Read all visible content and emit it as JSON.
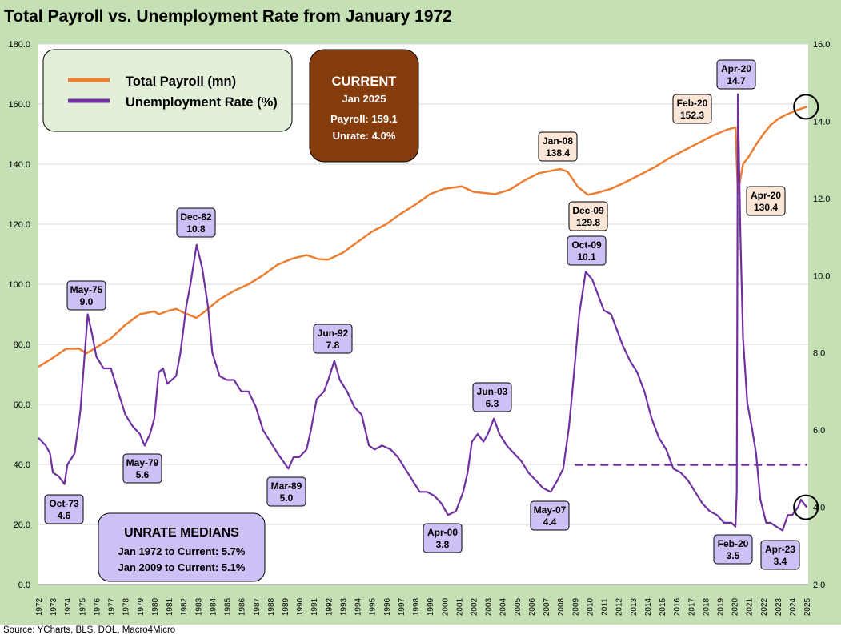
{
  "title": "Total Payroll vs. Unemployment Rate from January 1972",
  "source": "Source: YCharts, BLS, DOL, Macro4Micro",
  "colors": {
    "frame": "#c5e0b4",
    "payroll": "#ed7d31",
    "unrate": "#7030a0",
    "unrate_label_fill": "#ccc0f5",
    "payroll_label_fill": "#fbe5d6",
    "current_box": "#843c0c",
    "legend_fill": "#e2f0d9",
    "medians_fill": "#ccc0f5"
  },
  "legend": {
    "items": [
      {
        "label": "Total Payroll (mn)",
        "color": "#ed7d31"
      },
      {
        "label": "Unemployment Rate (%)",
        "color": "#7030a0"
      }
    ]
  },
  "current_box": {
    "heading": "CURRENT",
    "date": "Jan 2025",
    "payroll": "Payroll: 159.1",
    "unrate": "Unrate: 4.0%"
  },
  "medians_box": {
    "heading": "UNRATE MEDIANS",
    "line1": "Jan 1972 to Current: 5.7%",
    "line2": "Jan 2009 to Current: 5.1%"
  },
  "chart_data": {
    "type": "line",
    "x_axis": {
      "range": [
        1972,
        2025.1
      ],
      "tick_labels": [
        "1972",
        "1973",
        "1974",
        "1975",
        "1976",
        "1977",
        "1978",
        "1979",
        "1980",
        "1981",
        "1982",
        "1983",
        "1984",
        "1985",
        "1986",
        "1987",
        "1988",
        "1989",
        "1990",
        "1991",
        "1992",
        "1993",
        "1994",
        "1995",
        "1996",
        "1997",
        "1998",
        "1999",
        "2000",
        "2001",
        "2002",
        "2003",
        "2004",
        "2005",
        "2006",
        "2007",
        "2008",
        "2009",
        "2010",
        "2011",
        "2012",
        "2013",
        "2014",
        "2015",
        "2016",
        "2017",
        "2018",
        "2019",
        "2020",
        "2021",
        "2022",
        "2023",
        "2024",
        "2025"
      ]
    },
    "y_left": {
      "range": [
        0,
        180
      ],
      "ticks": [
        "0.0",
        "20.0",
        "40.0",
        "60.0",
        "80.0",
        "100.0",
        "120.0",
        "140.0",
        "160.0",
        "180.0"
      ]
    },
    "y_right": {
      "range": [
        2,
        16
      ],
      "ticks": [
        "2.0",
        "4.0",
        "6.0",
        "8.0",
        "10.0",
        "12.0",
        "14.0",
        "16.0"
      ]
    },
    "grid": "horizontal",
    "legend_position": "top-left",
    "series": [
      {
        "name": "Total Payroll (mn)",
        "axis": "left",
        "points": [
          [
            1972.0,
            72.5
          ],
          [
            1973.0,
            75.5
          ],
          [
            1973.9,
            78.5
          ],
          [
            1974.8,
            78.6
          ],
          [
            1975.3,
            77.0
          ],
          [
            1976.0,
            79.0
          ],
          [
            1977.0,
            82.0
          ],
          [
            1978.0,
            86.5
          ],
          [
            1979.0,
            90.0
          ],
          [
            1980.0,
            91.0
          ],
          [
            1980.3,
            90.0
          ],
          [
            1981.0,
            91.2
          ],
          [
            1981.5,
            91.8
          ],
          [
            1982.0,
            90.6
          ],
          [
            1982.9,
            88.8
          ],
          [
            1983.5,
            91.0
          ],
          [
            1984.5,
            95.0
          ],
          [
            1985.5,
            97.8
          ],
          [
            1986.5,
            100.0
          ],
          [
            1987.5,
            103.0
          ],
          [
            1988.5,
            106.5
          ],
          [
            1989.5,
            108.5
          ],
          [
            1990.5,
            109.7
          ],
          [
            1991.3,
            108.4
          ],
          [
            1992.0,
            108.2
          ],
          [
            1993.0,
            110.5
          ],
          [
            1994.0,
            114.0
          ],
          [
            1995.0,
            117.5
          ],
          [
            1996.0,
            120.0
          ],
          [
            1997.0,
            123.5
          ],
          [
            1998.0,
            126.5
          ],
          [
            1999.0,
            130.0
          ],
          [
            2000.0,
            131.8
          ],
          [
            2001.2,
            132.6
          ],
          [
            2002.0,
            130.8
          ],
          [
            2003.5,
            130.0
          ],
          [
            2004.5,
            131.5
          ],
          [
            2005.5,
            134.5
          ],
          [
            2006.5,
            137.0
          ],
          [
            2008.0,
            138.4
          ],
          [
            2008.5,
            137.5
          ],
          [
            2009.2,
            132.5
          ],
          [
            2009.9,
            129.8
          ],
          [
            2010.5,
            130.4
          ],
          [
            2011.5,
            131.8
          ],
          [
            2012.5,
            134.0
          ],
          [
            2013.5,
            136.5
          ],
          [
            2014.5,
            139.0
          ],
          [
            2015.5,
            142.0
          ],
          [
            2016.5,
            144.5
          ],
          [
            2017.5,
            147.0
          ],
          [
            2018.5,
            149.5
          ],
          [
            2019.5,
            151.5
          ],
          [
            2020.08,
            152.3
          ],
          [
            2020.25,
            130.4
          ],
          [
            2020.6,
            140.0
          ],
          [
            2021.0,
            142.5
          ],
          [
            2021.5,
            146.5
          ],
          [
            2022.0,
            150.0
          ],
          [
            2022.5,
            153.0
          ],
          [
            2023.0,
            155.0
          ],
          [
            2023.5,
            156.3
          ],
          [
            2024.0,
            157.3
          ],
          [
            2024.5,
            158.3
          ],
          [
            2025.0,
            159.1
          ]
        ]
      },
      {
        "name": "Unemployment Rate (%)",
        "axis": "right",
        "points": [
          [
            1972.0,
            5.8
          ],
          [
            1972.5,
            5.6
          ],
          [
            1972.8,
            5.4
          ],
          [
            1973.0,
            4.9
          ],
          [
            1973.4,
            4.8
          ],
          [
            1973.8,
            4.6
          ],
          [
            1974.0,
            5.1
          ],
          [
            1974.5,
            5.4
          ],
          [
            1974.9,
            6.5
          ],
          [
            1975.3,
            8.5
          ],
          [
            1975.4,
            9.0
          ],
          [
            1975.7,
            8.5
          ],
          [
            1976.0,
            7.9
          ],
          [
            1976.5,
            7.6
          ],
          [
            1977.0,
            7.6
          ],
          [
            1977.5,
            7.0
          ],
          [
            1978.0,
            6.4
          ],
          [
            1978.5,
            6.1
          ],
          [
            1979.0,
            5.9
          ],
          [
            1979.33,
            5.6
          ],
          [
            1979.7,
            5.9
          ],
          [
            1980.0,
            6.3
          ],
          [
            1980.3,
            7.5
          ],
          [
            1980.6,
            7.6
          ],
          [
            1980.9,
            7.2
          ],
          [
            1981.5,
            7.4
          ],
          [
            1981.8,
            8.0
          ],
          [
            1982.2,
            9.2
          ],
          [
            1982.5,
            9.8
          ],
          [
            1982.92,
            10.8
          ],
          [
            1983.3,
            10.2
          ],
          [
            1983.7,
            9.2
          ],
          [
            1984.0,
            8.0
          ],
          [
            1984.5,
            7.4
          ],
          [
            1985.0,
            7.3
          ],
          [
            1985.5,
            7.3
          ],
          [
            1986.0,
            7.0
          ],
          [
            1986.5,
            7.0
          ],
          [
            1987.0,
            6.6
          ],
          [
            1987.5,
            6.0
          ],
          [
            1988.0,
            5.7
          ],
          [
            1988.5,
            5.4
          ],
          [
            1989.25,
            5.0
          ],
          [
            1989.6,
            5.3
          ],
          [
            1990.0,
            5.3
          ],
          [
            1990.5,
            5.5
          ],
          [
            1990.8,
            6.0
          ],
          [
            1991.2,
            6.8
          ],
          [
            1991.7,
            7.0
          ],
          [
            1992.0,
            7.3
          ],
          [
            1992.42,
            7.8
          ],
          [
            1992.8,
            7.3
          ],
          [
            1993.3,
            7.0
          ],
          [
            1993.8,
            6.6
          ],
          [
            1994.3,
            6.4
          ],
          [
            1994.8,
            5.6
          ],
          [
            1995.2,
            5.5
          ],
          [
            1995.7,
            5.6
          ],
          [
            1996.3,
            5.5
          ],
          [
            1996.8,
            5.3
          ],
          [
            1997.3,
            5.0
          ],
          [
            1997.8,
            4.7
          ],
          [
            1998.3,
            4.4
          ],
          [
            1998.8,
            4.4
          ],
          [
            1999.3,
            4.3
          ],
          [
            1999.8,
            4.1
          ],
          [
            2000.25,
            3.8
          ],
          [
            2000.8,
            3.9
          ],
          [
            2001.3,
            4.4
          ],
          [
            2001.6,
            4.9
          ],
          [
            2001.9,
            5.7
          ],
          [
            2002.3,
            5.9
          ],
          [
            2002.7,
            5.7
          ],
          [
            2003.0,
            5.9
          ],
          [
            2003.42,
            6.3
          ],
          [
            2003.8,
            5.9
          ],
          [
            2004.3,
            5.6
          ],
          [
            2004.8,
            5.4
          ],
          [
            2005.3,
            5.2
          ],
          [
            2005.8,
            4.9
          ],
          [
            2006.3,
            4.7
          ],
          [
            2006.8,
            4.5
          ],
          [
            2007.33,
            4.4
          ],
          [
            2007.8,
            4.7
          ],
          [
            2008.2,
            5.0
          ],
          [
            2008.6,
            6.1
          ],
          [
            2008.9,
            7.3
          ],
          [
            2009.3,
            9.0
          ],
          [
            2009.75,
            10.1
          ],
          [
            2010.2,
            9.9
          ],
          [
            2010.6,
            9.5
          ],
          [
            2011.0,
            9.1
          ],
          [
            2011.5,
            9.0
          ],
          [
            2011.9,
            8.6
          ],
          [
            2012.3,
            8.2
          ],
          [
            2012.8,
            7.8
          ],
          [
            2013.3,
            7.5
          ],
          [
            2013.8,
            7.0
          ],
          [
            2014.3,
            6.3
          ],
          [
            2014.8,
            5.8
          ],
          [
            2015.3,
            5.5
          ],
          [
            2015.8,
            5.0
          ],
          [
            2016.3,
            4.9
          ],
          [
            2016.8,
            4.7
          ],
          [
            2017.3,
            4.4
          ],
          [
            2017.8,
            4.1
          ],
          [
            2018.3,
            3.9
          ],
          [
            2018.8,
            3.8
          ],
          [
            2019.3,
            3.6
          ],
          [
            2019.8,
            3.6
          ],
          [
            2020.08,
            3.5
          ],
          [
            2020.17,
            4.4
          ],
          [
            2020.25,
            14.7
          ],
          [
            2020.42,
            11.1
          ],
          [
            2020.6,
            8.4
          ],
          [
            2020.9,
            6.7
          ],
          [
            2021.2,
            6.1
          ],
          [
            2021.5,
            5.4
          ],
          [
            2021.8,
            4.2
          ],
          [
            2022.2,
            3.6
          ],
          [
            2022.5,
            3.6
          ],
          [
            2022.9,
            3.5
          ],
          [
            2023.33,
            3.4
          ],
          [
            2023.7,
            3.8
          ],
          [
            2024.0,
            3.8
          ],
          [
            2024.4,
            4.0
          ],
          [
            2024.6,
            4.2
          ],
          [
            2024.8,
            4.1
          ],
          [
            2025.0,
            4.0
          ]
        ]
      },
      {
        "name": "",
        "axis": "right",
        "style": "dashed",
        "points": [
          [
            2009.0,
            5.1
          ],
          [
            2025.0,
            5.1
          ]
        ]
      }
    ],
    "annotations": [
      {
        "series": "unrate",
        "date": "May-75",
        "value": "9.0",
        "x": 1975.33,
        "y": 9.0
      },
      {
        "series": "unrate",
        "date": "Oct-73",
        "value": "4.6",
        "x": 1973.75,
        "y": 4.6
      },
      {
        "series": "unrate",
        "date": "May-79",
        "value": "5.6",
        "x": 1979.33,
        "y": 5.6
      },
      {
        "series": "unrate",
        "date": "Dec-82",
        "value": "10.8",
        "x": 1982.92,
        "y": 10.8
      },
      {
        "series": "unrate",
        "date": "Mar-89",
        "value": "5.0",
        "x": 1989.17,
        "y": 5.0
      },
      {
        "series": "unrate",
        "date": "Jun-92",
        "value": "7.8",
        "x": 1992.42,
        "y": 7.8
      },
      {
        "series": "unrate",
        "date": "Apr-00",
        "value": "3.8",
        "x": 2000.25,
        "y": 3.8
      },
      {
        "series": "unrate",
        "date": "Jun-03",
        "value": "6.3",
        "x": 2003.42,
        "y": 6.3
      },
      {
        "series": "unrate",
        "date": "May-07",
        "value": "4.4",
        "x": 2007.33,
        "y": 4.4
      },
      {
        "series": "unrate",
        "date": "Oct-09",
        "value": "10.1",
        "x": 2009.75,
        "y": 10.1
      },
      {
        "series": "unrate",
        "date": "Apr-20",
        "value": "14.7",
        "x": 2020.25,
        "y": 14.7
      },
      {
        "series": "unrate",
        "date": "Feb-20",
        "value": "3.5",
        "x": 2020.08,
        "y": 3.5
      },
      {
        "series": "unrate",
        "date": "Apr-23",
        "value": "3.4",
        "x": 2023.25,
        "y": 3.4
      },
      {
        "series": "payroll",
        "date": "Jan-08",
        "value": "138.4",
        "x": 2008.0,
        "y": 138.4
      },
      {
        "series": "payroll",
        "date": "Dec-09",
        "value": "129.8",
        "x": 2009.92,
        "y": 129.8
      },
      {
        "series": "payroll",
        "date": "Feb-20",
        "value": "152.3",
        "x": 2020.08,
        "y": 152.3
      },
      {
        "series": "payroll",
        "date": "Apr-20",
        "value": "130.4",
        "x": 2020.25,
        "y": 130.4
      }
    ],
    "current_markers": [
      {
        "series": "payroll",
        "x": 2025.0,
        "y": 159.1
      },
      {
        "series": "unrate",
        "x": 2025.0,
        "y": 4.0
      }
    ]
  }
}
